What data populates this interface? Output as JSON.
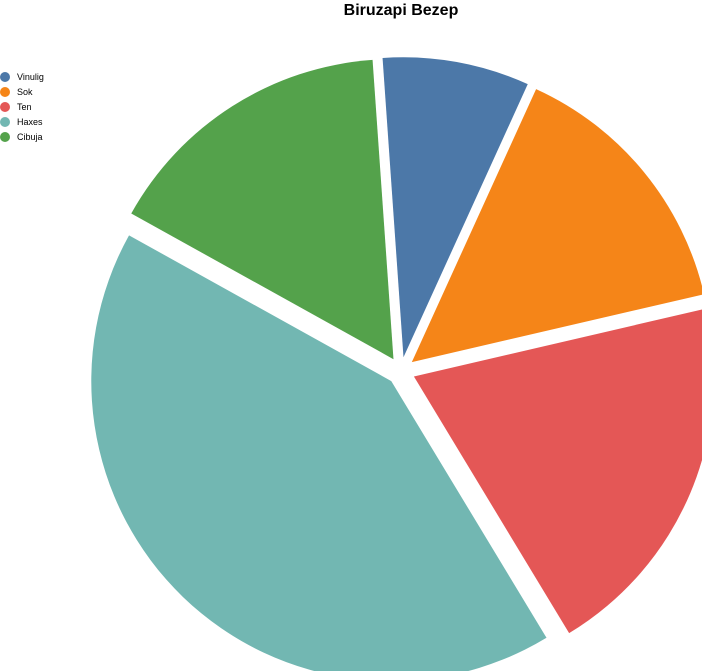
{
  "chart_data": {
    "type": "pie",
    "title": "Biruzapi Bezep",
    "legend_position": "top-left",
    "slices": [
      {
        "name": "Vinulig",
        "value": 7.6,
        "color": "#4c78a8"
      },
      {
        "name": "Sok",
        "value": 14.0,
        "color": "#f58518"
      },
      {
        "name": "Ten",
        "value": 19.2,
        "color": "#e45756"
      },
      {
        "name": "Haxes",
        "value": 40.1,
        "color": "#72b7b2"
      },
      {
        "name": "Cibuja",
        "value": 15.2,
        "color": "#54a24b"
      }
    ]
  }
}
